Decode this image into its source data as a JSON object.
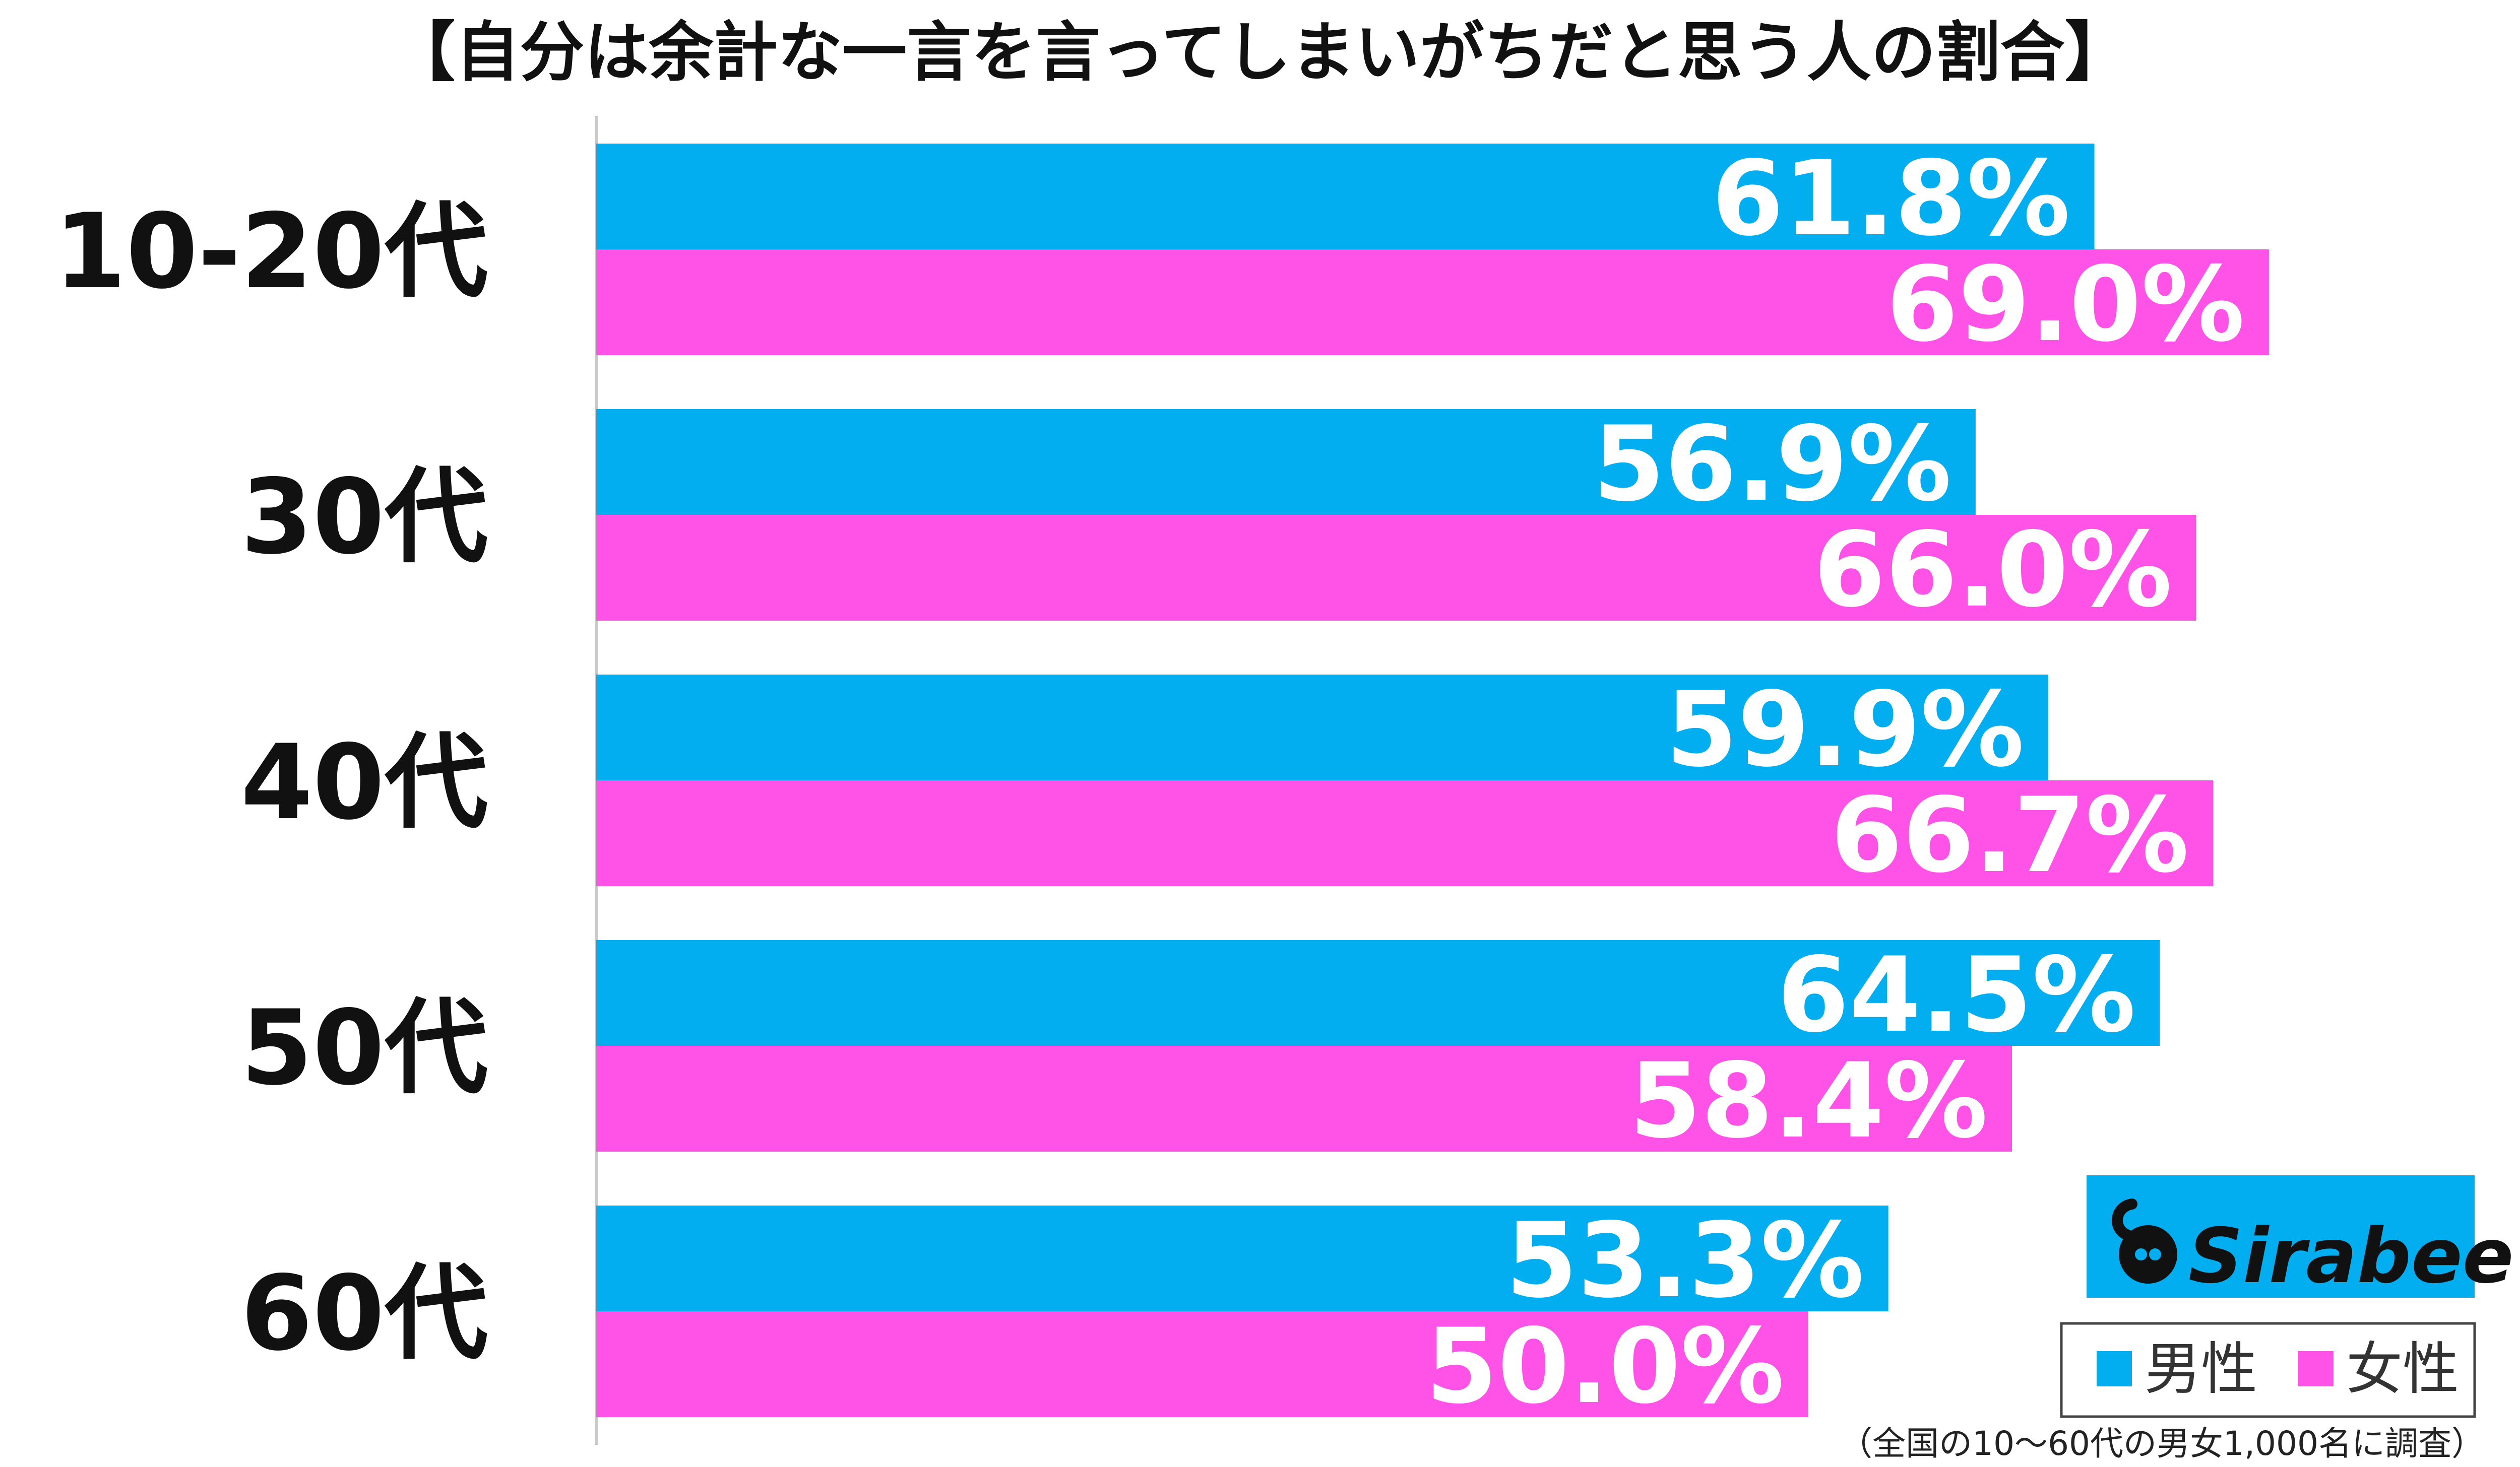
{
  "chart_data": {
    "type": "bar",
    "orientation": "horizontal",
    "title": "【自分は余計な一言を言ってしまいがちだと思う人の割合】",
    "categories": [
      "10-20代",
      "30代",
      "40代",
      "50代",
      "60代"
    ],
    "series": [
      {
        "name": "男性",
        "color": "#02aeef",
        "values": [
          61.8,
          56.9,
          59.9,
          64.5,
          53.3
        ],
        "labels": [
          "61.8%",
          "56.9%",
          "59.9%",
          "64.5%",
          "53.3%"
        ]
      },
      {
        "name": "女性",
        "color": "#fe53e6",
        "values": [
          69.0,
          66.0,
          66.7,
          58.4,
          50.0
        ],
        "labels": [
          "69.0%",
          "66.0%",
          "66.7%",
          "58.4%",
          "50.0%"
        ]
      }
    ],
    "xlim": [
      0,
      100
    ],
    "grid": false,
    "legend_position": "bottom-right",
    "footnote": "（全国の10～60代の男女1,000名に調査）"
  },
  "brand": {
    "name": "Sirabee",
    "background": "#02aeef",
    "icon": "sirabee-logo-icon"
  }
}
